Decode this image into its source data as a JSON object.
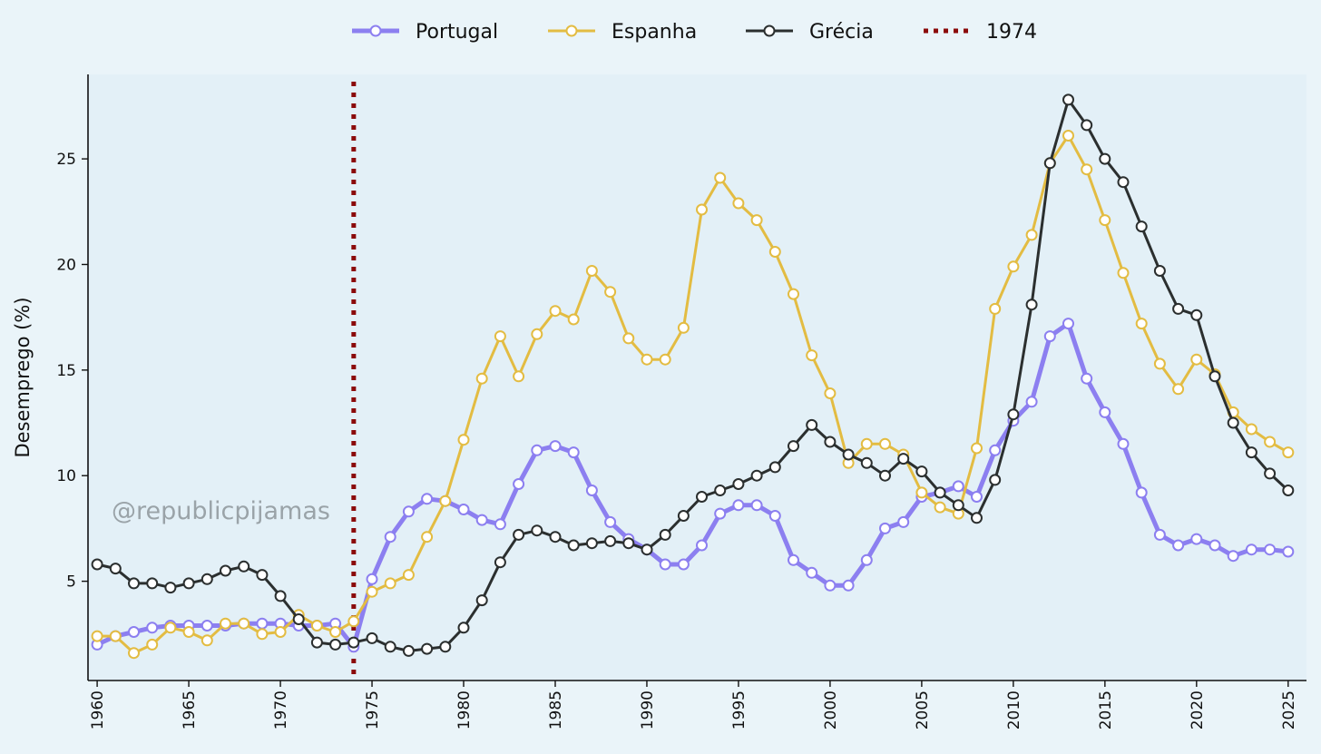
{
  "chart_data": {
    "type": "line",
    "title": "",
    "xlabel": "",
    "ylabel": "Desemprego (%)",
    "xlim": [
      1959.5,
      2026
    ],
    "ylim": [
      0.3,
      29
    ],
    "grid": false,
    "legend_position": "top-center",
    "x_ticks": [
      1960,
      1965,
      1970,
      1975,
      1980,
      1985,
      1990,
      1995,
      2000,
      2005,
      2010,
      2015,
      2020,
      2025
    ],
    "y_ticks": [
      5,
      10,
      15,
      20,
      25
    ],
    "x": [
      1960,
      1961,
      1962,
      1963,
      1964,
      1965,
      1966,
      1967,
      1968,
      1969,
      1970,
      1971,
      1972,
      1973,
      1974,
      1975,
      1976,
      1977,
      1978,
      1979,
      1980,
      1981,
      1982,
      1983,
      1984,
      1985,
      1986,
      1987,
      1988,
      1989,
      1990,
      1991,
      1992,
      1993,
      1994,
      1995,
      1996,
      1997,
      1998,
      1999,
      2000,
      2001,
      2002,
      2003,
      2004,
      2005,
      2006,
      2007,
      2008,
      2009,
      2010,
      2011,
      2012,
      2013,
      2014,
      2015,
      2016,
      2017,
      2018,
      2019,
      2020,
      2021,
      2022,
      2023,
      2024,
      2025
    ],
    "series": [
      {
        "name": "Portugal",
        "color": "#8c7ff0",
        "values": [
          2.0,
          2.4,
          2.6,
          2.8,
          2.9,
          2.9,
          2.9,
          2.9,
          3.0,
          3.0,
          3.0,
          2.9,
          2.9,
          3.0,
          1.9,
          5.1,
          7.1,
          8.3,
          8.9,
          8.8,
          8.4,
          7.9,
          7.7,
          9.6,
          11.2,
          11.4,
          11.1,
          9.3,
          7.8,
          7.0,
          6.5,
          5.8,
          5.8,
          6.7,
          8.2,
          8.6,
          8.6,
          8.1,
          6.0,
          5.4,
          4.8,
          4.8,
          6.0,
          7.5,
          7.8,
          9.0,
          9.2,
          9.5,
          9.0,
          11.2,
          12.6,
          13.5,
          16.6,
          17.2,
          14.6,
          13.0,
          11.5,
          9.2,
          7.2,
          6.7,
          7.0,
          6.7,
          6.2,
          6.5,
          6.5,
          6.4
        ]
      },
      {
        "name": "Espanha",
        "color": "#e3bc42",
        "values": [
          2.4,
          2.4,
          1.6,
          2.0,
          2.8,
          2.6,
          2.2,
          3.0,
          3.0,
          2.5,
          2.6,
          3.4,
          2.9,
          2.6,
          3.1,
          4.5,
          4.9,
          5.3,
          7.1,
          8.8,
          11.7,
          14.6,
          16.6,
          14.7,
          16.7,
          17.8,
          17.4,
          19.7,
          18.7,
          16.5,
          15.5,
          15.5,
          17.0,
          22.6,
          24.1,
          22.9,
          22.1,
          20.6,
          18.6,
          15.7,
          13.9,
          10.6,
          11.5,
          11.5,
          11.0,
          9.2,
          8.5,
          8.2,
          11.3,
          17.9,
          19.9,
          21.4,
          24.8,
          26.1,
          24.5,
          22.1,
          19.6,
          17.2,
          15.3,
          14.1,
          15.5,
          14.8,
          13.0,
          12.2,
          11.6,
          11.1
        ]
      },
      {
        "name": "Grécia",
        "color": "#2b2f2f",
        "values": [
          5.8,
          5.6,
          4.9,
          4.9,
          4.7,
          4.9,
          5.1,
          5.5,
          5.7,
          5.3,
          4.3,
          3.2,
          2.1,
          2.0,
          2.1,
          2.3,
          1.9,
          1.7,
          1.8,
          1.9,
          2.8,
          4.1,
          5.9,
          7.2,
          7.4,
          7.1,
          6.7,
          6.8,
          6.9,
          6.8,
          6.5,
          7.2,
          8.1,
          9.0,
          9.3,
          9.6,
          10.0,
          10.4,
          11.4,
          12.4,
          11.6,
          11.0,
          10.6,
          10.0,
          10.8,
          10.2,
          9.2,
          8.6,
          8.0,
          9.8,
          12.9,
          18.1,
          24.8,
          27.8,
          26.6,
          25.0,
          23.9,
          21.8,
          19.7,
          17.9,
          17.6,
          14.7,
          12.5,
          11.1,
          10.1,
          9.3
        ]
      }
    ],
    "vline": {
      "label": "1974",
      "x": 1974,
      "color": "#8b0a0a"
    },
    "watermark": "@republicpijamas"
  }
}
